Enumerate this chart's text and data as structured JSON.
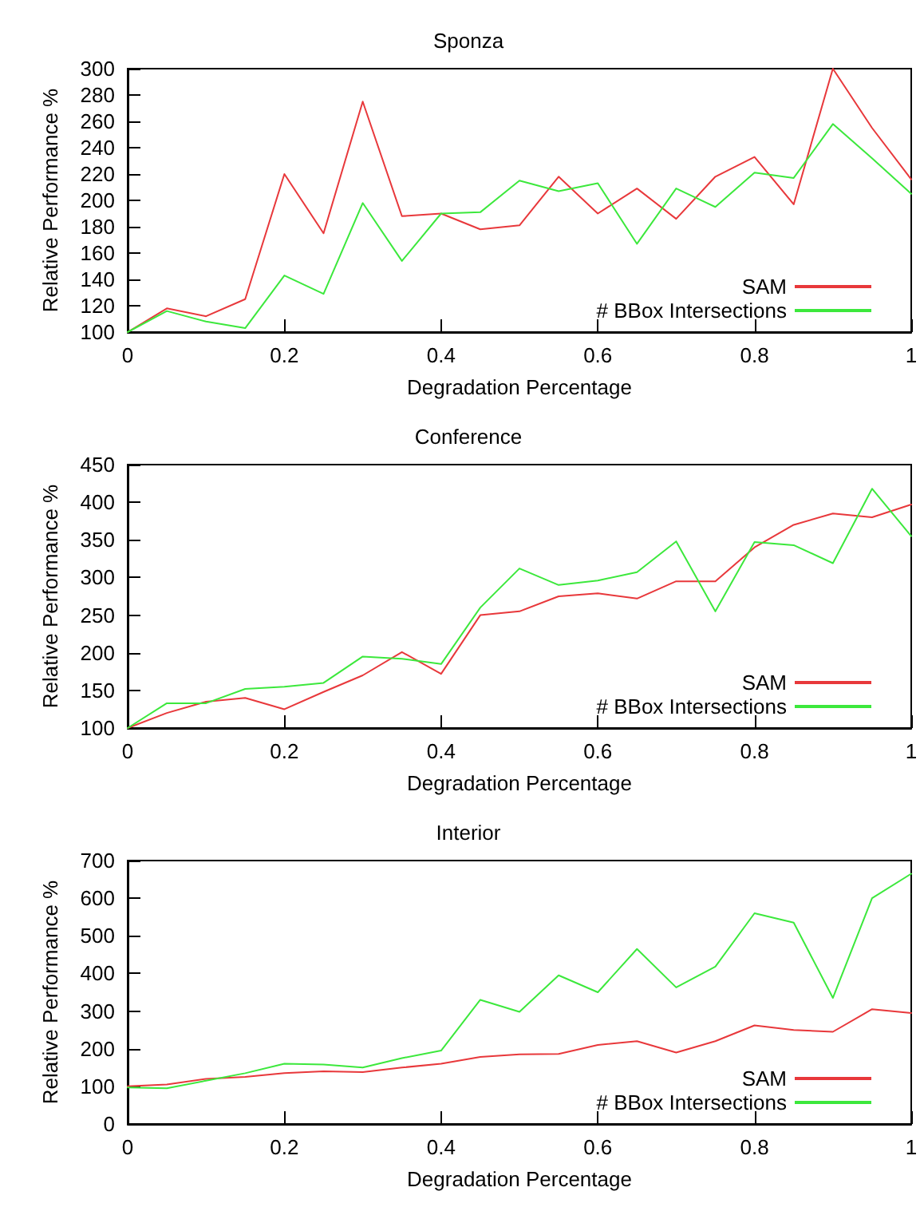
{
  "chart_data": [
    {
      "type": "line",
      "title": "Sponza",
      "xlabel": "Degradation Percentage",
      "ylabel": "Relative Performance %",
      "x": [
        0,
        0.05,
        0.1,
        0.15,
        0.2,
        0.25,
        0.3,
        0.35,
        0.4,
        0.45,
        0.5,
        0.55,
        0.6,
        0.65,
        0.7,
        0.75,
        0.8,
        0.85,
        0.9,
        0.95,
        1
      ],
      "xlim": [
        0,
        1
      ],
      "xticks": [
        0,
        0.2,
        0.4,
        0.6,
        0.8,
        1
      ],
      "ylim": [
        100,
        300
      ],
      "yticks": [
        100,
        120,
        140,
        160,
        180,
        200,
        220,
        240,
        260,
        280,
        300
      ],
      "legend": "bottom right",
      "series": [
        {
          "name": "SAM",
          "color": "#e8383b",
          "values": [
            100,
            118,
            112,
            125,
            220,
            175,
            275,
            188,
            190,
            178,
            181,
            218,
            190,
            209,
            186,
            218,
            233,
            197,
            300,
            255,
            216
          ]
        },
        {
          "name": "# BBox Intersections",
          "color": "#3ce83c",
          "values": [
            100,
            116,
            108,
            103,
            143,
            129,
            198,
            154,
            190,
            191,
            215,
            207,
            213,
            167,
            209,
            195,
            221,
            217,
            258,
            232,
            205
          ]
        }
      ]
    },
    {
      "type": "line",
      "title": "Conference",
      "xlabel": "Degradation Percentage",
      "ylabel": "Relative Performance %",
      "x": [
        0,
        0.05,
        0.1,
        0.15,
        0.2,
        0.25,
        0.3,
        0.35,
        0.4,
        0.45,
        0.5,
        0.55,
        0.6,
        0.65,
        0.7,
        0.75,
        0.8,
        0.85,
        0.9,
        0.95,
        1
      ],
      "xlim": [
        0,
        1
      ],
      "xticks": [
        0,
        0.2,
        0.4,
        0.6,
        0.8,
        1
      ],
      "ylim": [
        100,
        450
      ],
      "yticks": [
        100,
        150,
        200,
        250,
        300,
        350,
        400,
        450
      ],
      "legend": "bottom right",
      "series": [
        {
          "name": "SAM",
          "color": "#e8383b",
          "values": [
            100,
            120,
            135,
            140,
            125,
            148,
            170,
            201,
            172,
            250,
            255,
            275,
            279,
            272,
            295,
            295,
            340,
            370,
            385,
            380,
            397
          ]
        },
        {
          "name": "# BBox Intersections",
          "color": "#3ce83c",
          "values": [
            100,
            133,
            133,
            152,
            155,
            160,
            195,
            192,
            185,
            260,
            312,
            290,
            296,
            307,
            348,
            255,
            347,
            343,
            319,
            418,
            355
          ]
        }
      ]
    },
    {
      "type": "line",
      "title": "Interior",
      "xlabel": "Degradation Percentage",
      "ylabel": "Relative Performance %",
      "x": [
        0,
        0.05,
        0.1,
        0.15,
        0.2,
        0.25,
        0.3,
        0.35,
        0.4,
        0.45,
        0.5,
        0.55,
        0.6,
        0.65,
        0.7,
        0.75,
        0.8,
        0.85,
        0.9,
        0.95,
        1
      ],
      "xlim": [
        0,
        1
      ],
      "xticks": [
        0,
        0.2,
        0.4,
        0.6,
        0.8,
        1
      ],
      "ylim": [
        0,
        700
      ],
      "yticks": [
        0,
        100,
        200,
        300,
        400,
        500,
        600,
        700
      ],
      "legend": "bottom right",
      "series": [
        {
          "name": "SAM",
          "color": "#e8383b",
          "values": [
            100,
            105,
            120,
            125,
            135,
            140,
            138,
            150,
            160,
            178,
            185,
            186,
            210,
            220,
            190,
            220,
            262,
            250,
            245,
            305,
            295
          ]
        },
        {
          "name": "# BBox Intersections",
          "color": "#3ce83c",
          "values": [
            97,
            95,
            115,
            135,
            160,
            158,
            150,
            175,
            195,
            330,
            298,
            395,
            350,
            465,
            363,
            418,
            560,
            535,
            335,
            600,
            665
          ]
        }
      ]
    }
  ]
}
